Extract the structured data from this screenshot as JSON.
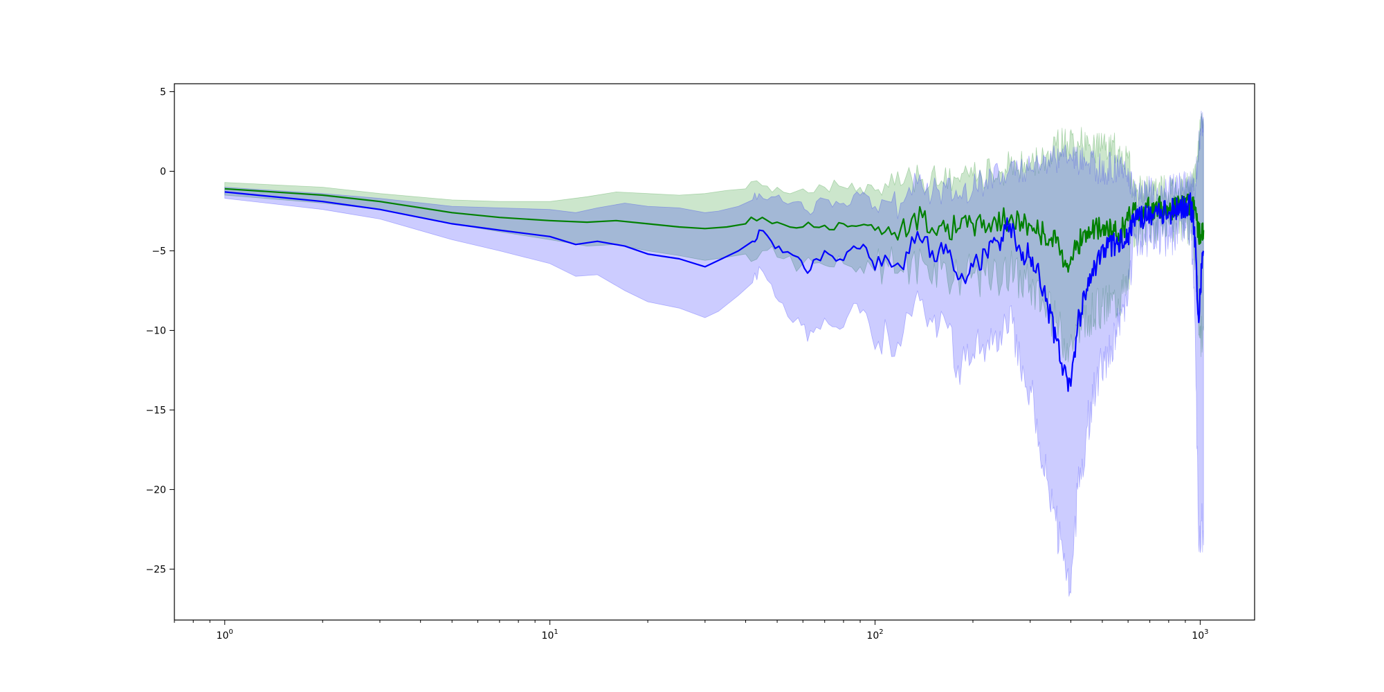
{
  "chart_data": {
    "type": "line",
    "title": "",
    "xlabel": "",
    "ylabel": "",
    "xscale": "log",
    "xlim": [
      0.7,
      1470
    ],
    "ylim": [
      -28.2,
      5.5
    ],
    "grid": false,
    "legend": "none",
    "x_ticks": [
      {
        "base": "10",
        "exp": "0",
        "value": 1
      },
      {
        "base": "10",
        "exp": "1",
        "value": 10
      },
      {
        "base": "10",
        "exp": "2",
        "value": 100
      },
      {
        "base": "10",
        "exp": "3",
        "value": 1000
      }
    ],
    "y_ticks": [
      {
        "label": "5",
        "value": 5
      },
      {
        "label": "0",
        "value": 0
      },
      {
        "label": "−5",
        "value": -5
      },
      {
        "label": "−10",
        "value": -10
      },
      {
        "label": "−15",
        "value": -15
      },
      {
        "label": "−20",
        "value": -20
      },
      {
        "label": "−25",
        "value": -25
      }
    ],
    "series": [
      {
        "color": "#008000",
        "band_color": "#008000",
        "band_opacity": 0.2,
        "points": [
          [
            1,
            -1.1,
            -0.7,
            -1.5
          ],
          [
            2,
            -1.5,
            -1.0,
            -2.0
          ],
          [
            3,
            -1.9,
            -1.4,
            -2.4
          ],
          [
            5,
            -2.6,
            -1.8,
            -3.3
          ],
          [
            7,
            -2.9,
            -1.9,
            -3.8
          ],
          [
            10,
            -3.1,
            -1.9,
            -4.3
          ],
          [
            13,
            -3.2,
            -1.6,
            -4.7
          ],
          [
            16,
            -3.1,
            -1.3,
            -4.6
          ],
          [
            20,
            -3.3,
            -1.4,
            -5.0
          ],
          [
            25,
            -3.5,
            -1.5,
            -5.3
          ],
          [
            30,
            -3.6,
            -1.4,
            -5.6
          ],
          [
            35,
            -3.5,
            -1.2,
            -5.4
          ],
          [
            40,
            -3.3,
            -1.1,
            -5.2
          ],
          [
            45,
            -2.9,
            -0.9,
            -5.0
          ],
          [
            50,
            -3.2,
            -1.0,
            -5.4
          ],
          [
            60,
            -3.5,
            -1.1,
            -5.8
          ],
          [
            70,
            -3.4,
            -1.0,
            -5.9
          ],
          [
            80,
            -3.3,
            -1.0,
            -5.8
          ],
          [
            90,
            -3.4,
            -1.0,
            -6.0
          ],
          [
            100,
            -3.7,
            -1.2,
            -6.3
          ],
          [
            110,
            -3.5,
            -1.0,
            -6.0
          ],
          [
            120,
            -3.6,
            -0.9,
            -6.2
          ],
          [
            140,
            -2.9,
            -0.5,
            -5.6
          ],
          [
            160,
            -3.4,
            -0.6,
            -6.2
          ],
          [
            180,
            -3.6,
            -0.4,
            -6.6
          ],
          [
            200,
            -3.3,
            -0.3,
            -6.4
          ],
          [
            230,
            -3.2,
            -0.2,
            -6.6
          ],
          [
            260,
            -3.0,
            0.3,
            -6.3
          ],
          [
            300,
            -3.4,
            0.5,
            -7.1
          ],
          [
            330,
            -3.9,
            1.0,
            -8.3
          ],
          [
            360,
            -4.5,
            1.6,
            -9.5
          ],
          [
            390,
            -5.8,
            1.9,
            -10.8
          ],
          [
            420,
            -4.5,
            1.9,
            -10.2
          ],
          [
            460,
            -3.8,
            1.5,
            -9.0
          ],
          [
            500,
            -3.6,
            1.4,
            -8.5
          ],
          [
            560,
            -3.9,
            1.4,
            -8.0
          ],
          [
            600,
            -3.1,
            0.8,
            -7.0
          ],
          [
            620,
            -2.4,
            -1.0,
            -3.5
          ],
          [
            700,
            -2.4,
            -1.2,
            -3.3
          ],
          [
            800,
            -2.3,
            -1.3,
            -3.2
          ],
          [
            900,
            -2.1,
            -1.1,
            -3.0
          ],
          [
            950,
            -2.3,
            -1.0,
            -3.6
          ],
          [
            980,
            -3.3,
            1.0,
            -7.5
          ],
          [
            1000,
            -4.1,
            2.5,
            -10.5
          ],
          [
            1024,
            -3.7,
            2.9,
            -10.0
          ]
        ]
      },
      {
        "color": "#0000ff",
        "band_color": "#0000ff",
        "band_opacity": 0.2,
        "points": [
          [
            1,
            -1.3,
            -1.0,
            -1.7
          ],
          [
            2,
            -1.9,
            -1.4,
            -2.4
          ],
          [
            3,
            -2.4,
            -1.7,
            -3.0
          ],
          [
            5,
            -3.3,
            -2.2,
            -4.3
          ],
          [
            7,
            -3.7,
            -2.3,
            -5.0
          ],
          [
            10,
            -4.1,
            -2.4,
            -5.8
          ],
          [
            12,
            -4.6,
            -2.6,
            -6.6
          ],
          [
            14,
            -4.4,
            -2.3,
            -6.5
          ],
          [
            17,
            -4.7,
            -2.0,
            -7.5
          ],
          [
            20,
            -5.2,
            -2.2,
            -8.2
          ],
          [
            25,
            -5.5,
            -2.3,
            -8.6
          ],
          [
            30,
            -6.0,
            -2.6,
            -9.2
          ],
          [
            33,
            -5.6,
            -2.5,
            -8.8
          ],
          [
            38,
            -5.0,
            -2.2,
            -7.8
          ],
          [
            42,
            -4.4,
            -1.8,
            -7.0
          ],
          [
            44,
            -3.7,
            -1.4,
            -6.0
          ],
          [
            48,
            -4.4,
            -1.6,
            -7.1
          ],
          [
            52,
            -5.1,
            -1.9,
            -8.3
          ],
          [
            58,
            -5.4,
            -1.9,
            -9.2
          ],
          [
            62,
            -6.4,
            -2.5,
            -10.7
          ],
          [
            66,
            -5.5,
            -1.9,
            -9.8
          ],
          [
            72,
            -5.2,
            -1.8,
            -9.6
          ],
          [
            80,
            -5.6,
            -2.0,
            -9.8
          ],
          [
            86,
            -4.7,
            -1.5,
            -8.3
          ],
          [
            92,
            -4.6,
            -1.3,
            -8.7
          ],
          [
            100,
            -6.2,
            -2.2,
            -11.2
          ],
          [
            110,
            -5.6,
            -1.9,
            -10.4
          ],
          [
            120,
            -6.0,
            -2.0,
            -11.0
          ],
          [
            135,
            -3.8,
            -0.8,
            -7.5
          ],
          [
            150,
            -5.0,
            -1.4,
            -9.5
          ],
          [
            165,
            -4.6,
            -1.0,
            -9.5
          ],
          [
            180,
            -6.8,
            -1.7,
            -12.2
          ],
          [
            200,
            -6.0,
            -1.2,
            -11.5
          ],
          [
            220,
            -5.2,
            -0.5,
            -11.0
          ],
          [
            240,
            -4.5,
            0.0,
            -11.2
          ],
          [
            260,
            -3.3,
            0.3,
            -8.5
          ],
          [
            280,
            -5.0,
            0.2,
            -12.5
          ],
          [
            300,
            -5.4,
            0.3,
            -13.5
          ],
          [
            320,
            -6.5,
            0.4,
            -17.0
          ],
          [
            340,
            -8.5,
            0.5,
            -19.5
          ],
          [
            360,
            -10.5,
            0.7,
            -22.0
          ],
          [
            380,
            -12.5,
            0.9,
            -24.5
          ],
          [
            400,
            -13.5,
            1.0,
            -26.5
          ],
          [
            420,
            -9.5,
            0.7,
            -20.0
          ],
          [
            450,
            -7.5,
            0.4,
            -16.0
          ],
          [
            480,
            -6.0,
            0.2,
            -13.0
          ],
          [
            520,
            -4.8,
            0.2,
            -11.5
          ],
          [
            560,
            -4.5,
            0.3,
            -9.8
          ],
          [
            600,
            -3.9,
            0.2,
            -8.0
          ],
          [
            620,
            -3.2,
            -1.3,
            -4.5
          ],
          [
            700,
            -2.8,
            -1.3,
            -4.0
          ],
          [
            800,
            -2.6,
            -1.2,
            -4.0
          ],
          [
            880,
            -2.2,
            -1.0,
            -3.6
          ],
          [
            930,
            -2.0,
            -0.9,
            -3.6
          ],
          [
            960,
            -3.5,
            -1.0,
            -8.0
          ],
          [
            990,
            -9.5,
            1.5,
            -23.5
          ],
          [
            1010,
            -6.0,
            3.3,
            -22.0
          ],
          [
            1024,
            -5.0,
            2.9,
            -23.5
          ]
        ]
      }
    ]
  }
}
